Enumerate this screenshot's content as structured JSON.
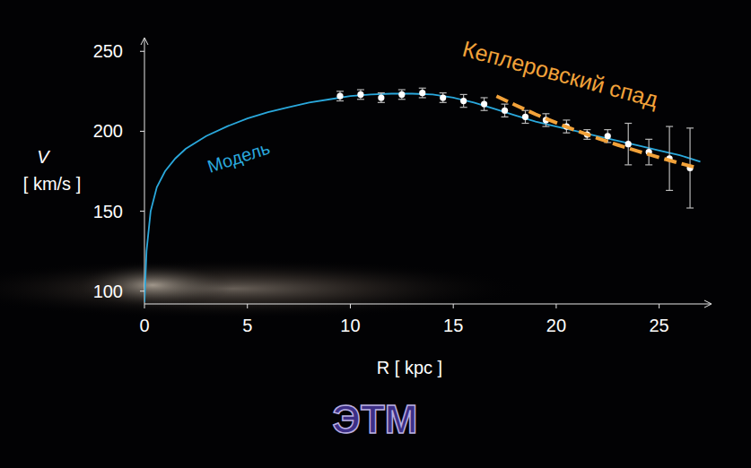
{
  "chart_data": {
    "type": "scatter",
    "ylabel": [
      "V",
      "[ km/s ]"
    ],
    "xlabel": "R [ kpc ]",
    "logo": "ЭТМ",
    "xlim": [
      0,
      27.5
    ],
    "ylim": [
      92,
      258
    ],
    "xticks": [
      0,
      5,
      10,
      15,
      20,
      25
    ],
    "yticks": [
      100,
      150,
      200,
      250
    ],
    "grid": false,
    "series": [
      {
        "type": "scatter",
        "marker": "circle",
        "color": "#ffffff",
        "x": [
          9.5,
          10.5,
          11.5,
          12.5,
          13.5,
          14.5,
          15.5,
          16.5,
          17.5,
          18.5,
          19.5,
          20.5,
          21.5,
          22.5,
          23.5,
          24.5,
          25.5,
          26.5
        ],
        "values": [
          222,
          223,
          221,
          223,
          224,
          221,
          219,
          217,
          213,
          209,
          207,
          203,
          198,
          197,
          192,
          187,
          183,
          177
        ],
        "errors": [
          3,
          3,
          3,
          3,
          3,
          3,
          4,
          4,
          4,
          4,
          4,
          4,
          3,
          4,
          13,
          8,
          20,
          25
        ]
      },
      {
        "name": "Модель",
        "type": "line",
        "line_style": "solid",
        "color": "#2aa8dc",
        "x": [
          0,
          0.1,
          0.3,
          0.6,
          1,
          1.5,
          2,
          3,
          4,
          5,
          6,
          7,
          8,
          9,
          10,
          11,
          12,
          13,
          14,
          15,
          16,
          17,
          18,
          19,
          20,
          21,
          22,
          23,
          24,
          25,
          26,
          27
        ],
        "values": [
          93,
          125,
          150,
          165,
          175,
          183,
          189,
          197,
          203,
          208,
          212,
          215,
          218,
          220,
          222,
          223,
          223.5,
          223.5,
          223,
          221,
          218,
          214,
          210,
          206,
          203,
          200,
          197,
          194,
          191,
          188,
          185,
          181
        ]
      },
      {
        "name": "Кеплеровский спад",
        "type": "line",
        "line_style": "dashed",
        "color": "#f2a23a",
        "x": [
          17.1,
          18,
          19,
          20,
          21,
          22,
          23,
          24,
          25,
          26,
          26.8
        ],
        "values": [
          222,
          216.5,
          210.6,
          205.3,
          200.3,
          195.7,
          191.4,
          187.4,
          183.6,
          180,
          177.3
        ]
      }
    ]
  }
}
